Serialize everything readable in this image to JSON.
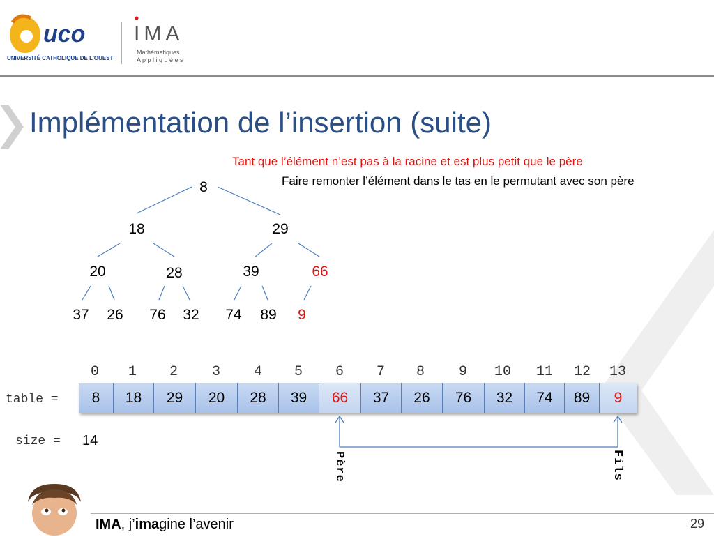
{
  "header": {
    "logo_uco_text": "uco",
    "logo_uco_caption": "UNIVERSITÉ CATHOLIQUE DE L'OUEST",
    "logo_ima_text": "IMA",
    "logo_ima_line1": "Mathématiques",
    "logo_ima_line2": "A p p l i q u é e s"
  },
  "slide": {
    "title": "Implémentation de l’insertion (suite)",
    "condition_text": "Tant que l’élément n’est pas à la racine et est plus petit que le père",
    "action_text": "Faire remonter l’élément dans le tas en le permutant avec son père"
  },
  "tree": {
    "nodes": [
      {
        "value": "8",
        "highlight": false
      },
      {
        "value": "18",
        "highlight": false
      },
      {
        "value": "29",
        "highlight": false
      },
      {
        "value": "20",
        "highlight": false
      },
      {
        "value": "28",
        "highlight": false
      },
      {
        "value": "39",
        "highlight": false
      },
      {
        "value": "66",
        "highlight": true
      },
      {
        "value": "37",
        "highlight": false
      },
      {
        "value": "26",
        "highlight": false
      },
      {
        "value": "76",
        "highlight": false
      },
      {
        "value": "32",
        "highlight": false
      },
      {
        "value": "74",
        "highlight": false
      },
      {
        "value": "89",
        "highlight": false
      },
      {
        "value": "9",
        "highlight": true
      }
    ]
  },
  "array": {
    "label": "table =",
    "indices": [
      "0",
      "1",
      "2",
      "3",
      "4",
      "5",
      "6",
      "7",
      "8",
      "9",
      "10",
      "11",
      "12",
      "13"
    ],
    "cells": [
      {
        "value": "8",
        "highlight": false
      },
      {
        "value": "18",
        "highlight": false
      },
      {
        "value": "29",
        "highlight": false
      },
      {
        "value": "20",
        "highlight": false
      },
      {
        "value": "28",
        "highlight": false
      },
      {
        "value": "39",
        "highlight": false
      },
      {
        "value": "66",
        "highlight": true
      },
      {
        "value": "37",
        "highlight": false
      },
      {
        "value": "26",
        "highlight": false
      },
      {
        "value": "76",
        "highlight": false
      },
      {
        "value": "32",
        "highlight": false
      },
      {
        "value": "74",
        "highlight": false
      },
      {
        "value": "89",
        "highlight": false
      },
      {
        "value": "9",
        "highlight": true
      }
    ],
    "size_label": "size =",
    "size_value": "14",
    "parent_label": "Père",
    "child_label": "Fils"
  },
  "footer": {
    "brand_bold": "IMA",
    "brand_rest": ", j’",
    "brand_bold2": "ima",
    "brand_tail": "gine l’avenir",
    "page_number": "29"
  },
  "colors": {
    "title": "#2a4e86",
    "highlight": "#e0140f",
    "cell_fill": "#b5cbed",
    "tree_edges": "#4d7fbf"
  }
}
